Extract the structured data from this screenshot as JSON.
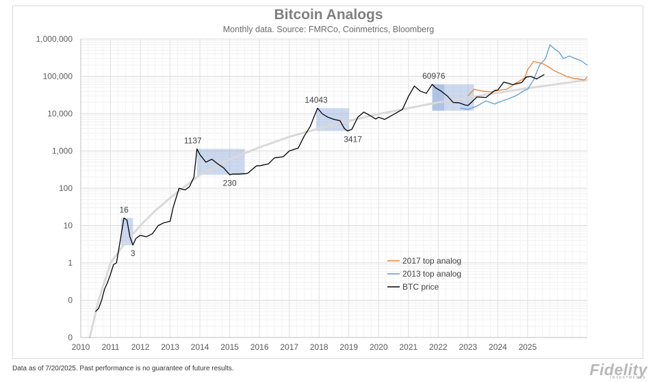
{
  "header": {
    "title": "Bitcoin Analogs",
    "subtitle": "Monthly data.  Source: FMRCo, Coinmetrics, Bloomberg"
  },
  "footer": {
    "note": "Data as of 7/20/2025. Past performance is no guarantee of future results.",
    "logo": "Fidelity",
    "logo_sub": "INVESTMENTS"
  },
  "colors": {
    "btc": "#000000",
    "analog2017": "#ed7d31",
    "analog2013": "#5b9bd5",
    "trend": "#d9d9d9",
    "box": "#8faadc"
  },
  "chart_data": {
    "type": "line",
    "title": "Bitcoin Analogs",
    "subtitle": "Monthly data.  Source: FMRCo, Coinmetrics, Bloomberg",
    "x_range": [
      2010,
      2027
    ],
    "x_ticks": [
      "2010",
      "2011",
      "2012",
      "2013",
      "2014",
      "2015",
      "2016",
      "2017",
      "2018",
      "2019",
      "2020",
      "2021",
      "2022",
      "2023",
      "2024",
      "2025"
    ],
    "y_scale": "log",
    "y_ticks": [
      "1,000,000",
      "100,000",
      "10,000",
      "1,000",
      "100",
      "10",
      "1",
      "0",
      "0"
    ],
    "y_tick_values": [
      1000000,
      100000,
      10000,
      1000,
      100,
      10,
      1,
      0.1,
      0.01
    ],
    "legend": {
      "placement": "lower-right",
      "entries": [
        {
          "label": "2017 top analog",
          "series": "analog2017"
        },
        {
          "label": "2013 top analog",
          "series": "analog2013"
        },
        {
          "label": "BTC price",
          "series": "btc"
        }
      ]
    },
    "annotations": [
      {
        "text": "16",
        "x": 2011.45,
        "y": 16
      },
      {
        "text": "3",
        "x": 2011.75,
        "y": 3
      },
      {
        "text": "1137",
        "x": 2013.9,
        "y": 1137
      },
      {
        "text": "230",
        "x": 2015.0,
        "y": 230
      },
      {
        "text": "14043",
        "x": 2017.95,
        "y": 14043
      },
      {
        "text": "3417",
        "x": 2018.95,
        "y": 3417
      },
      {
        "text": "60976",
        "x": 2021.85,
        "y": 60976
      }
    ],
    "boxes": [
      {
        "x0": 2011.35,
        "x1": 2011.75,
        "y0": 3,
        "y1": 16
      },
      {
        "x0": 2013.9,
        "x1": 2015.5,
        "y0": 230,
        "y1": 1137
      },
      {
        "x0": 2017.9,
        "x1": 2019.0,
        "y0": 3417,
        "y1": 14043
      },
      {
        "x0": 2021.8,
        "x1": 2023.2,
        "y0": 12000,
        "y1": 60976
      },
      {
        "x0": 2021.8,
        "x1": 2022.2,
        "y0": 12000,
        "y1": 60976
      }
    ],
    "series": [
      {
        "name": "BTC price",
        "key": "btc",
        "x": [
          2010.5,
          2010.6,
          2010.7,
          2010.8,
          2010.9,
          2011.0,
          2011.1,
          2011.2,
          2011.3,
          2011.45,
          2011.55,
          2011.65,
          2011.75,
          2011.85,
          2012.0,
          2012.2,
          2012.4,
          2012.6,
          2012.8,
          2013.0,
          2013.1,
          2013.3,
          2013.5,
          2013.65,
          2013.8,
          2013.9,
          2014.0,
          2014.2,
          2014.4,
          2014.6,
          2014.8,
          2015.0,
          2015.1,
          2015.3,
          2015.6,
          2015.9,
          2016.0,
          2016.3,
          2016.5,
          2016.8,
          2017.0,
          2017.3,
          2017.5,
          2017.7,
          2017.85,
          2017.95,
          2018.1,
          2018.3,
          2018.5,
          2018.7,
          2018.85,
          2018.95,
          2019.1,
          2019.3,
          2019.5,
          2019.7,
          2019.9,
          2020.0,
          2020.2,
          2020.5,
          2020.8,
          2021.0,
          2021.2,
          2021.4,
          2021.6,
          2021.8,
          2021.9,
          2022.1,
          2022.3,
          2022.5,
          2022.7,
          2022.9,
          2023.0,
          2023.3,
          2023.6,
          2023.9,
          2024.0,
          2024.2,
          2024.5,
          2024.8,
          2024.95,
          2025.1,
          2025.3,
          2025.55
        ],
        "values": [
          0.05,
          0.06,
          0.1,
          0.2,
          0.3,
          0.5,
          0.9,
          1,
          3,
          16,
          14,
          5,
          3,
          4.5,
          5.5,
          5,
          6,
          10,
          12,
          13,
          30,
          100,
          90,
          110,
          200,
          1137,
          800,
          500,
          600,
          450,
          350,
          230,
          240,
          240,
          250,
          400,
          400,
          450,
          650,
          700,
          1000,
          1200,
          2500,
          4500,
          9000,
          14043,
          10000,
          8000,
          7000,
          6500,
          4000,
          3417,
          3800,
          8000,
          11000,
          9000,
          7200,
          8000,
          7000,
          9500,
          13000,
          29000,
          55000,
          40000,
          35000,
          60976,
          50000,
          40000,
          30000,
          20000,
          19500,
          17000,
          16500,
          28000,
          27000,
          42000,
          43000,
          70000,
          60000,
          68000,
          95000,
          100000,
          85000,
          110000
        ]
      },
      {
        "name": "2017 top analog",
        "key": "analog2017",
        "x": [
          2023.0,
          2023.2,
          2023.5,
          2023.8,
          2024.0,
          2024.3,
          2024.6,
          2024.9,
          2025.0,
          2025.2,
          2025.5,
          2025.7,
          2025.9,
          2026.1,
          2026.3,
          2026.5,
          2026.7,
          2026.9,
          2027.0
        ],
        "values": [
          30000,
          45000,
          40000,
          38000,
          42000,
          45000,
          65000,
          90000,
          150000,
          250000,
          220000,
          180000,
          140000,
          120000,
          100000,
          90000,
          85000,
          80000,
          95000
        ]
      },
      {
        "name": "2013 top analog",
        "key": "analog2013",
        "x": [
          2022.75,
          2023.0,
          2023.3,
          2023.6,
          2023.9,
          2024.0,
          2024.3,
          2024.6,
          2024.9,
          2025.0,
          2025.2,
          2025.4,
          2025.6,
          2025.75,
          2025.9,
          2026.05,
          2026.2,
          2026.4,
          2026.6,
          2026.8,
          2027.0
        ],
        "values": [
          14000,
          13000,
          16000,
          22000,
          18000,
          20000,
          24000,
          30000,
          42000,
          45000,
          80000,
          200000,
          300000,
          700000,
          550000,
          450000,
          300000,
          350000,
          300000,
          260000,
          200000
        ]
      },
      {
        "name": "Trend",
        "key": "trend",
        "x": [
          2010.3,
          2010.6,
          2011.0,
          2011.5,
          2012.0,
          2012.5,
          2013.0,
          2014.0,
          2015.0,
          2016.0,
          2017.0,
          2018.0,
          2019.0,
          2020.0,
          2021.0,
          2022.0,
          2023.0,
          2024.0,
          2025.0,
          2026.0,
          2027.0
        ],
        "values": [
          0.01,
          0.1,
          1,
          3.5,
          10,
          25,
          55,
          230,
          600,
          1250,
          2400,
          4000,
          6400,
          9800,
          14000,
          20000,
          27000,
          36000,
          48000,
          62000,
          80000
        ]
      }
    ]
  }
}
